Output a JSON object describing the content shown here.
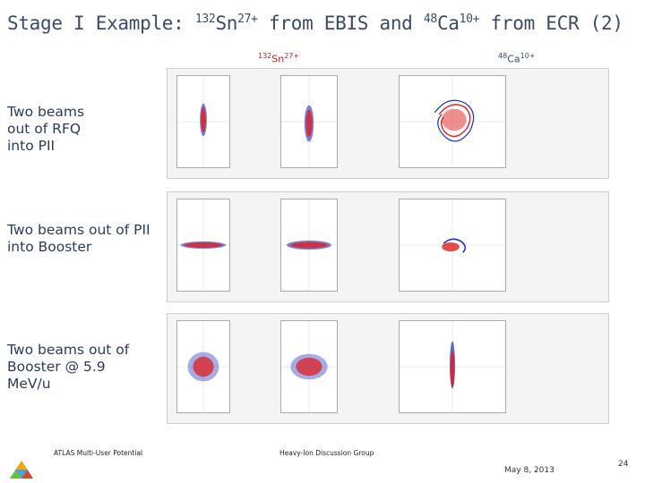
{
  "slide": {
    "title_prefix": "Stage I Example: ",
    "sn_mass": "132",
    "sn_symbol": "Sn",
    "sn_charge": "27+",
    "title_mid": " from EBIS and ",
    "ca_mass": "48",
    "ca_symbol": "Ca",
    "ca_charge": "10+",
    "title_suffix": " from ECR (2)"
  },
  "column_labels": {
    "sn": {
      "mass": "132",
      "symbol": "Sn",
      "charge": "27+"
    },
    "ca": {
      "mass": "48",
      "symbol": "Ca",
      "charge": "10+"
    }
  },
  "rows": [
    {
      "label": "Two beams out of RFQ into PII"
    },
    {
      "label": "Two beams out of PII into Booster"
    },
    {
      "label": "Two beams out of Booster @ 5.9 MeV/u"
    }
  ],
  "footer": {
    "left": "ATLAS Multi-User Potential",
    "center": "Heavy-Ion Discussion Group",
    "date": "May 8, 2013",
    "page": "24"
  },
  "colors": {
    "title": "#3a4a6b",
    "sn_beam": "#e02020",
    "ca_beam": "#2030c0"
  }
}
